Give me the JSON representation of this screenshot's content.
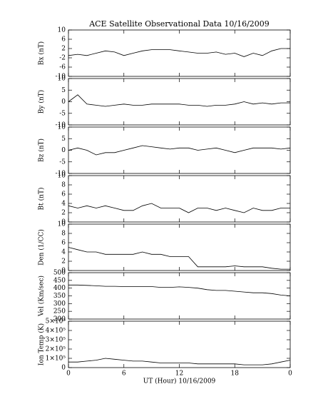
{
  "chart_data": [
    {
      "type": "line",
      "title": "ACE Satellite Observational Data   10/16/2009",
      "ylabel": "Bx (nT)",
      "color": "#000000",
      "x": [
        0,
        1,
        2,
        3,
        4,
        5,
        6,
        7,
        8,
        9,
        10,
        11,
        12,
        13,
        14,
        15,
        16,
        17,
        18,
        19,
        20,
        21,
        22,
        23,
        24
      ],
      "values": [
        -1,
        -0.5,
        -1,
        0,
        1,
        0.5,
        -1,
        0,
        1,
        1.5,
        1.5,
        1.5,
        1,
        0.5,
        0,
        0,
        0.5,
        -0.5,
        0,
        -1.5,
        0,
        -1,
        1,
        2,
        2
      ],
      "xlim": [
        0,
        24
      ],
      "ylim": [
        -10,
        10
      ],
      "yticks": [
        -10,
        -6,
        -2,
        2,
        6,
        10
      ]
    },
    {
      "type": "line",
      "ylabel": "By (nT)",
      "color": "#000000",
      "x": [
        0,
        1,
        2,
        3,
        4,
        5,
        6,
        7,
        8,
        9,
        10,
        11,
        12,
        13,
        14,
        15,
        16,
        17,
        18,
        19,
        20,
        21,
        22,
        23,
        24
      ],
      "values": [
        0,
        3,
        -1,
        -1.5,
        -2,
        -1.5,
        -1,
        -1.5,
        -1.5,
        -1,
        -1,
        -1,
        -1,
        -1.5,
        -1.5,
        -2,
        -1.5,
        -1.5,
        -1,
        0,
        -1,
        -0.5,
        -1,
        -0.5,
        -0.5
      ],
      "xlim": [
        0,
        24
      ],
      "ylim": [
        -10,
        10
      ],
      "yticks": [
        -10,
        -5,
        0,
        5,
        10
      ]
    },
    {
      "type": "line",
      "ylabel": "Bz (nT)",
      "color": "#000000",
      "x": [
        0,
        1,
        2,
        3,
        4,
        5,
        6,
        7,
        8,
        9,
        10,
        11,
        12,
        13,
        14,
        15,
        16,
        17,
        18,
        19,
        20,
        21,
        22,
        23,
        24
      ],
      "values": [
        0,
        1,
        0,
        -2,
        -1,
        -1,
        0,
        1,
        2,
        1.5,
        1,
        0.5,
        1,
        1,
        0,
        0.5,
        1,
        0,
        -1,
        0,
        1,
        1,
        1,
        0.5,
        1
      ],
      "xlim": [
        0,
        24
      ],
      "ylim": [
        -10,
        10
      ],
      "yticks": [
        -10,
        -5,
        0,
        5,
        10
      ]
    },
    {
      "type": "line",
      "ylabel": "Bt (nT)",
      "color": "#000000",
      "x": [
        0,
        1,
        2,
        3,
        4,
        5,
        6,
        7,
        8,
        9,
        10,
        11,
        12,
        13,
        14,
        15,
        16,
        17,
        18,
        19,
        20,
        21,
        22,
        23,
        24
      ],
      "values": [
        3.5,
        3,
        3.5,
        3,
        3.5,
        3,
        2.5,
        2.5,
        3.5,
        4,
        3,
        3,
        3,
        2,
        3,
        3,
        2.5,
        3,
        2.5,
        2,
        3,
        2.5,
        2.5,
        3,
        3
      ],
      "xlim": [
        0,
        24
      ],
      "ylim": [
        0,
        10
      ],
      "yticks": [
        0,
        2,
        4,
        6,
        8,
        10
      ]
    },
    {
      "type": "line",
      "ylabel": "Den (1/CC)",
      "color": "#000000",
      "x": [
        0,
        1,
        2,
        3,
        4,
        5,
        6,
        7,
        8,
        9,
        10,
        11,
        12,
        13,
        14,
        15,
        16,
        17,
        18,
        19,
        20,
        21,
        22,
        23,
        24
      ],
      "values": [
        5,
        4.5,
        4,
        4,
        3.5,
        3.5,
        3.5,
        3.5,
        4,
        3.5,
        3.5,
        3,
        3,
        3,
        0.8,
        0.8,
        0.8,
        0.8,
        1,
        0.8,
        0.8,
        0.8,
        0.5,
        0.3,
        0.3
      ],
      "xlim": [
        0,
        24
      ],
      "ylim": [
        0,
        10
      ],
      "yticks": [
        0,
        2,
        4,
        6,
        8,
        10
      ]
    },
    {
      "type": "line",
      "ylabel": "Vel (Km/sec)",
      "color": "#000000",
      "x": [
        0,
        1,
        2,
        3,
        4,
        5,
        6,
        7,
        8,
        9,
        10,
        11,
        12,
        13,
        14,
        15,
        16,
        17,
        18,
        19,
        20,
        21,
        22,
        23,
        24
      ],
      "values": [
        420,
        420,
        418,
        415,
        412,
        412,
        410,
        410,
        410,
        410,
        405,
        405,
        408,
        405,
        400,
        390,
        385,
        385,
        380,
        375,
        370,
        370,
        365,
        355,
        350
      ],
      "xlim": [
        0,
        24
      ],
      "ylim": [
        200,
        500
      ],
      "yticks": [
        200,
        250,
        300,
        350,
        400,
        450,
        500
      ]
    },
    {
      "type": "line",
      "ylabel": "Ion Temp (K)",
      "xlabel": "UT (Hour)   10/16/2009",
      "color": "#000000",
      "x": [
        0,
        1,
        2,
        3,
        4,
        5,
        6,
        7,
        8,
        9,
        10,
        11,
        12,
        13,
        14,
        15,
        16,
        17,
        18,
        19,
        20,
        21,
        22,
        23,
        24
      ],
      "values": [
        60000,
        60000,
        70000,
        80000,
        100000,
        90000,
        80000,
        70000,
        70000,
        60000,
        50000,
        50000,
        50000,
        50000,
        40000,
        40000,
        40000,
        40000,
        40000,
        30000,
        30000,
        30000,
        40000,
        60000,
        80000
      ],
      "xlim": [
        0,
        24
      ],
      "ylim": [
        0,
        500000
      ],
      "yticks": [
        0,
        {
          "value": 100000,
          "label": "1×10⁵"
        },
        {
          "value": 200000,
          "label": "2×10⁵"
        },
        {
          "value": 300000,
          "label": "3×10⁵"
        },
        {
          "value": 400000,
          "label": "4×10⁵"
        },
        {
          "value": 500000,
          "label": "5×10⁵"
        }
      ],
      "xticks": [
        0,
        6,
        12,
        18,
        {
          "value": 24,
          "label": "0"
        }
      ]
    }
  ]
}
